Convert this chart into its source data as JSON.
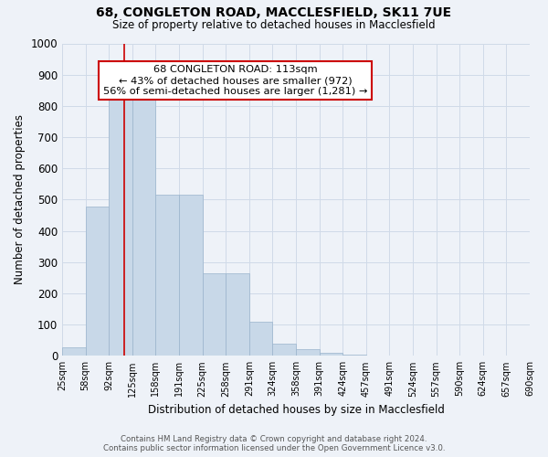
{
  "title": "68, CONGLETON ROAD, MACCLESFIELD, SK11 7UE",
  "subtitle": "Size of property relative to detached houses in Macclesfield",
  "xlabel": "Distribution of detached houses by size in Macclesfield",
  "ylabel": "Number of detached properties",
  "footer_line1": "Contains HM Land Registry data © Crown copyright and database right 2024.",
  "footer_line2": "Contains public sector information licensed under the Open Government Licence v3.0.",
  "bin_labels": [
    "25sqm",
    "58sqm",
    "92sqm",
    "125sqm",
    "158sqm",
    "191sqm",
    "225sqm",
    "258sqm",
    "291sqm",
    "324sqm",
    "358sqm",
    "391sqm",
    "424sqm",
    "457sqm",
    "491sqm",
    "524sqm",
    "557sqm",
    "590sqm",
    "624sqm",
    "657sqm",
    "690sqm"
  ],
  "bar_values": [
    28,
    478,
    820,
    820,
    515,
    515,
    265,
    265,
    110,
    40,
    22,
    10,
    5,
    0,
    0,
    0,
    0,
    0,
    0,
    0
  ],
  "bar_color": "#c8d8e8",
  "bar_edge_color": "#9ab4cc",
  "grid_color": "#d0dae8",
  "background_color": "#eef2f8",
  "vline_x_index": 2.67,
  "annotation_text_line1": "68 CONGLETON ROAD: 113sqm",
  "annotation_text_line2": "← 43% of detached houses are smaller (972)",
  "annotation_text_line3": "56% of semi-detached houses are larger (1,281) →",
  "annotation_box_color": "#ffffff",
  "annotation_border_color": "#cc0000",
  "vline_color": "#cc0000",
  "ylim": [
    0,
    1000
  ],
  "yticks": [
    0,
    100,
    200,
    300,
    400,
    500,
    600,
    700,
    800,
    900,
    1000
  ]
}
